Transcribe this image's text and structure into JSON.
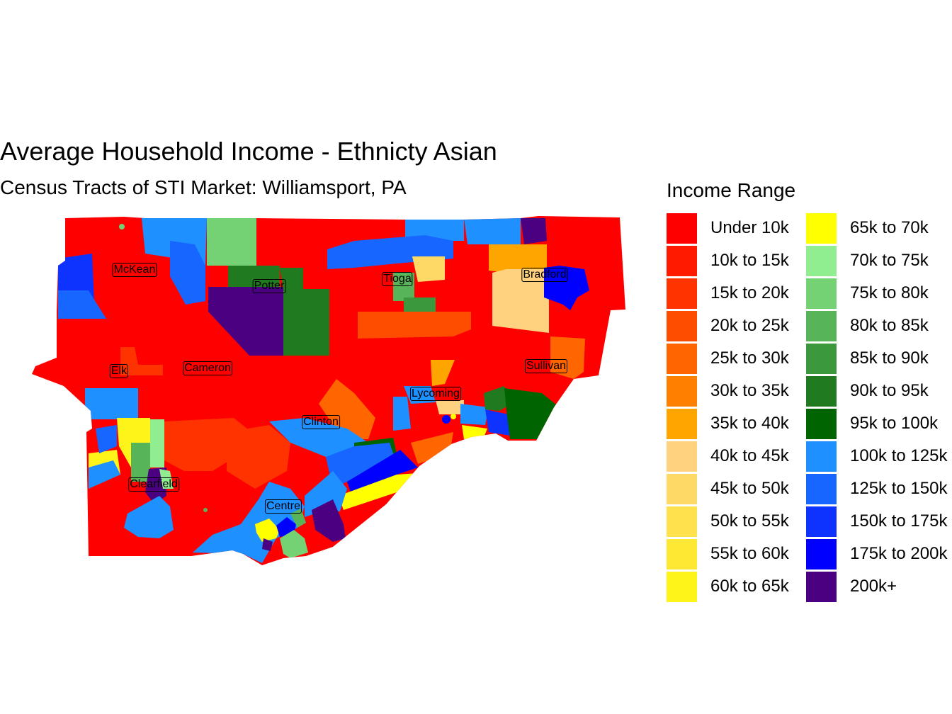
{
  "title": "Average Household Income - Ethnicty Asian",
  "subtitle": "Census Tracts of STI Market: Williamsport, PA",
  "legend": {
    "title": "Income Range",
    "columns": 2,
    "items": [
      {
        "label": "Under 10k",
        "color": "#FF0000"
      },
      {
        "label": "10k to 15k",
        "color": "#FF1A00"
      },
      {
        "label": "15k to 20k",
        "color": "#FF3300"
      },
      {
        "label": "20k to 25k",
        "color": "#FF4D00"
      },
      {
        "label": "25k to 30k",
        "color": "#FF6600"
      },
      {
        "label": "30k to 35k",
        "color": "#FF8000"
      },
      {
        "label": "35k to 40k",
        "color": "#FFA500"
      },
      {
        "label": "40k to 45k",
        "color": "#FFD27F"
      },
      {
        "label": "45k to 50k",
        "color": "#FFD966"
      },
      {
        "label": "50k to 55k",
        "color": "#FFE14D"
      },
      {
        "label": "55k to 60k",
        "color": "#FFE833"
      },
      {
        "label": "60k to 65k",
        "color": "#FFF41A"
      },
      {
        "label": "65k to 70k",
        "color": "#FFFF00"
      },
      {
        "label": "70k to 75k",
        "color": "#90EE90"
      },
      {
        "label": "75k to 80k",
        "color": "#74D174"
      },
      {
        "label": "80k to 85k",
        "color": "#58B458"
      },
      {
        "label": "85k to 90k",
        "color": "#3C983C"
      },
      {
        "label": "90k to 95k",
        "color": "#207B20"
      },
      {
        "label": "95k to 100k",
        "color": "#006400"
      },
      {
        "label": "100k to 125k",
        "color": "#1E90FF"
      },
      {
        "label": "125k to 150k",
        "color": "#1766FF"
      },
      {
        "label": "150k to 175k",
        "color": "#0F33FF"
      },
      {
        "label": "175k to 200k",
        "color": "#0000FF"
      },
      {
        "label": "200k+",
        "color": "#4B0082"
      }
    ]
  },
  "counties": [
    "McKean",
    "Potter",
    "Tioga",
    "Bradford",
    "Elk",
    "Cameron",
    "Sullivan",
    "Lycoming",
    "Clinton",
    "Clearfield",
    "Centre"
  ]
}
